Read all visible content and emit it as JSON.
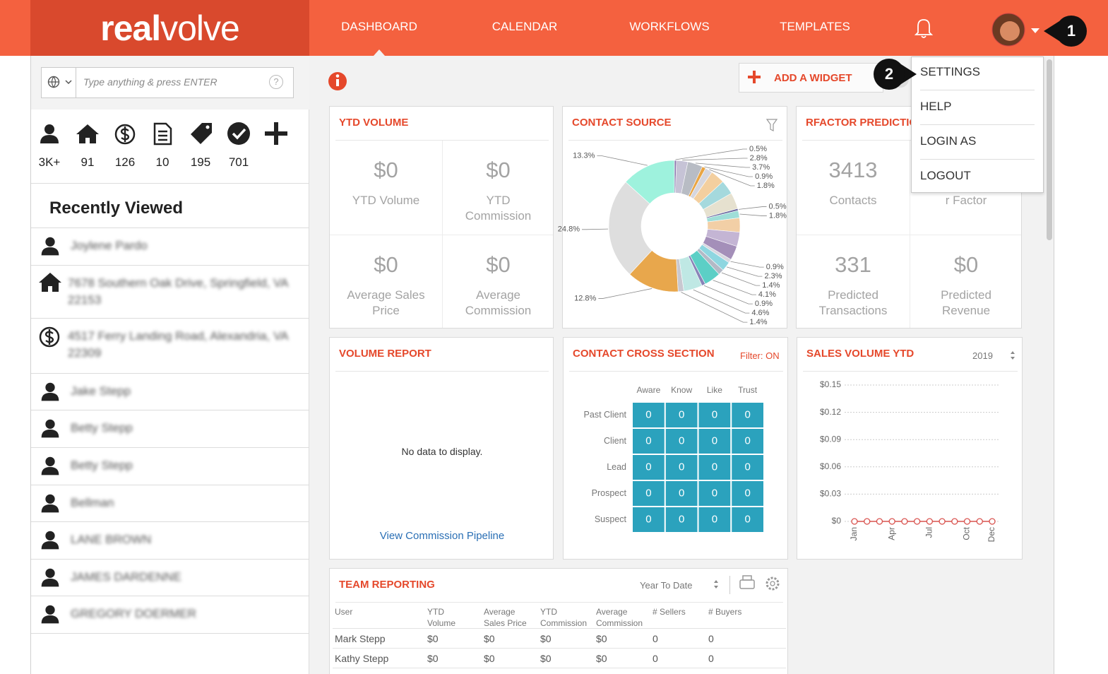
{
  "nav": {
    "logo_bold": "real",
    "logo_light": "volve",
    "items": [
      "DASHBOARD",
      "CALENDAR",
      "WORKFLOWS",
      "TEMPLATES"
    ]
  },
  "callouts": [
    "1",
    "2"
  ],
  "user_menu": [
    "SETTINGS",
    "HELP",
    "LOGIN AS",
    "LOGOUT"
  ],
  "sidebar": {
    "search_placeholder": "Type anything & press ENTER",
    "search_help": "?",
    "counts": [
      "3K+",
      "91",
      "126",
      "10",
      "195",
      "701"
    ],
    "recently_viewed": {
      "title": "Recently Viewed",
      "items": [
        "Joylene Pardo",
        "7678 Southern Oak Drive, Springfield, VA 22153",
        "4517 Ferry Landing Road, Alexandria, VA 22309",
        "Jake Stepp",
        "Betty Stepp",
        "Betty Stepp",
        "Bellman",
        "LANE BROWN",
        "JAMES DARDENNE",
        "GREGORY DOERMER"
      ]
    }
  },
  "dashboard": {
    "add_widget": "ADD A WIDGET",
    "ytd_volume": {
      "title": "YTD VOLUME",
      "cells": [
        {
          "value": "$0",
          "label": "YTD Volume"
        },
        {
          "value": "$0",
          "label": "YTD Commission"
        },
        {
          "value": "$0",
          "label": "Average Sales Price"
        },
        {
          "value": "$0",
          "label": "Average Commission"
        }
      ]
    },
    "contact_source": {
      "title": "CONTACT SOURCE",
      "type": "pie",
      "values": [
        0.5,
        2.8,
        3.7,
        0.9,
        1.8,
        3.5,
        3.5,
        4,
        0.5,
        1.8,
        3.5,
        3.5,
        3.5,
        0.9,
        2.3,
        1.4,
        4.1,
        0.9,
        4.6,
        1.4,
        12.8,
        24.8,
        13.3
      ],
      "value_labels": [
        "0.5%",
        "2.8%",
        "3.7%",
        "0.9%",
        "1.8%",
        null,
        null,
        null,
        "0.5%",
        "1.8%",
        null,
        null,
        null,
        "0.9%",
        "2.3%",
        "1.4%",
        "4.1%",
        "0.9%",
        "4.6%",
        "1.4%",
        "12.8%",
        "24.8%",
        "13.3%"
      ],
      "colors": [
        "#8b76ae",
        "#c6c3d6",
        "#b8bcc4",
        "#e9a544",
        "#d6d6de",
        "#f3cf9f",
        "#a5d9dd",
        "#e6e1cf",
        "#6c6aa0",
        "#9fded8",
        "#f2cfa6",
        "#c4b5d4",
        "#a48fb9",
        "#d7d7df",
        "#8ed6e0",
        "#b3b9c6",
        "#5ccfc6",
        "#8a84b8",
        "#bfe8e4",
        "#c8c8d0",
        "#e8a74c",
        "#dedede",
        "#9ef2dd"
      ]
    },
    "rfactor": {
      "title": "RFACTOR PREDICTION",
      "cells": [
        {
          "value": 3413,
          "label": "Contacts"
        },
        {
          "label": "r Factor"
        },
        {
          "value": 331,
          "label": "Predicted Transactions"
        },
        {
          "value": "$0",
          "label": "Predicted Revenue"
        }
      ]
    },
    "volume_report": {
      "title": "VOLUME REPORT",
      "empty": "No data to display.",
      "link": "View Commission Pipeline"
    },
    "cross_section": {
      "title": "CONTACT CROSS SECTION",
      "filter": "Filter: ON",
      "columns": [
        "Aware",
        "Know",
        "Like",
        "Trust"
      ],
      "rows": [
        "Past Client",
        "Client",
        "Lead",
        "Prospect",
        "Suspect"
      ],
      "cells": [
        [
          0,
          0,
          0,
          0
        ],
        [
          0,
          0,
          0,
          0
        ],
        [
          0,
          0,
          0,
          0
        ],
        [
          0,
          0,
          0,
          0
        ],
        [
          0,
          0,
          0,
          0
        ]
      ]
    },
    "sales_volume": {
      "title": "SALES VOLUME YTD",
      "year": "2019",
      "type": "line",
      "color": "#d9534f",
      "grid": true,
      "categories": [
        "Jan",
        null,
        null,
        "Apr",
        null,
        null,
        "Jul",
        null,
        null,
        "Oct",
        null,
        "Dec"
      ],
      "values": [
        0,
        0,
        0,
        0,
        0,
        0,
        0,
        0,
        0,
        0,
        0,
        0
      ],
      "ylim": [
        0,
        0.15
      ],
      "yticks": [
        {
          "value": 0,
          "label": "$0"
        },
        {
          "value": 0.03,
          "label": "$0.03"
        },
        {
          "value": 0.06,
          "label": "$0.06"
        },
        {
          "value": 0.09,
          "label": "$0.09"
        },
        {
          "value": 0.12,
          "label": "$0.12"
        },
        {
          "value": 0.15,
          "label": "$0.15"
        }
      ]
    },
    "team_reporting": {
      "title": "TEAM REPORTING",
      "period": "Year To Date",
      "columns": [
        "User",
        "YTD Volume",
        "Average Sales Price",
        "YTD Commission",
        "Average Commission",
        "# Sellers",
        "# Buyers"
      ],
      "rows": [
        [
          "Mark Stepp",
          "$0",
          "$0",
          "$0",
          "$0",
          0,
          0
        ],
        [
          "Kathy Stepp",
          "$0",
          "$0",
          "$0",
          "$0",
          0,
          0
        ]
      ]
    }
  }
}
